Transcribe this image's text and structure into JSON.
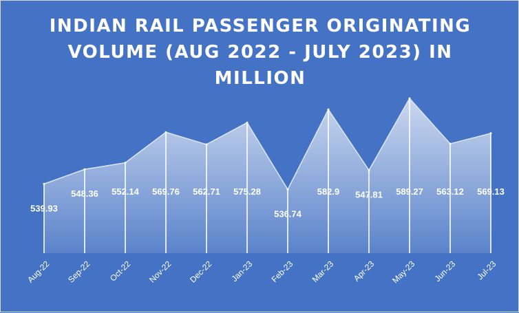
{
  "chart_data": {
    "type": "area",
    "title": "INDIAN RAIL PASSENGER ORIGINATING VOLUME (AUG 2022 - JULY 2023) IN MILLION",
    "categories": [
      "Aug-22",
      "Sep-22",
      "Oct-22",
      "Nov-22",
      "Dec-22",
      "Jan-23",
      "Feb-23",
      "Mar-23",
      "Apr-23",
      "May-23",
      "Jun-23",
      "Jul-23"
    ],
    "series": [
      {
        "values": [
          539.93,
          548.36,
          552.14,
          569.76,
          562.71,
          575.28,
          536.74,
          582.9,
          547.81,
          589.27,
          563.12,
          569.13
        ],
        "labels": [
          "539.93",
          "548.36",
          "552.14",
          "569.76",
          "562.71",
          "575.28",
          "536.74",
          "582.9",
          "547.81",
          "589.27",
          "563.12",
          "569.13"
        ]
      }
    ],
    "ylim": [
      500,
      600
    ],
    "grid": false,
    "legend": "none",
    "colors": {
      "background": "#4472c4",
      "fill_top": "#b4c7e7",
      "text": "#ffffff"
    }
  }
}
